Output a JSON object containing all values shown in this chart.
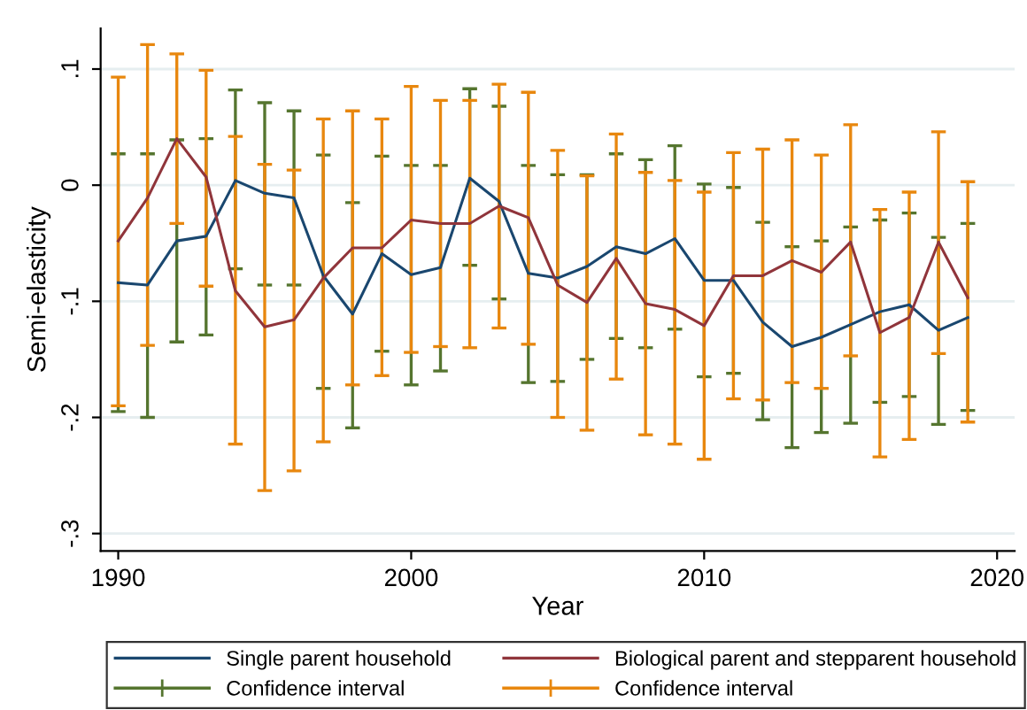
{
  "chart_data": {
    "type": "line",
    "xlabel": "Year",
    "ylabel": "Semi-elasticity",
    "x": [
      1990,
      1991,
      1992,
      1993,
      1994,
      1995,
      1996,
      1997,
      1998,
      1999,
      2000,
      2001,
      2002,
      2003,
      2004,
      2005,
      2006,
      2007,
      2008,
      2009,
      2010,
      2011,
      2012,
      2013,
      2014,
      2015,
      2016,
      2017,
      2018,
      2019
    ],
    "series": [
      {
        "name": "Single parent household",
        "color": "#1a476f",
        "values": [
          -0.084,
          -0.086,
          -0.048,
          -0.044,
          0.004,
          -0.007,
          -0.011,
          -0.078,
          -0.111,
          -0.059,
          -0.077,
          -0.071,
          0.006,
          -0.014,
          -0.076,
          -0.08,
          -0.07,
          -0.053,
          -0.059,
          -0.046,
          -0.082,
          -0.082,
          -0.118,
          -0.139,
          -0.131,
          -0.12,
          -0.109,
          -0.103,
          -0.125,
          -0.114
        ],
        "errors": [
          [
            -0.195,
            0.027
          ],
          [
            -0.2,
            0.027
          ],
          [
            -0.135,
            0.039
          ],
          [
            -0.129,
            0.04
          ],
          [
            -0.072,
            0.082
          ],
          [
            -0.086,
            0.071
          ],
          [
            -0.086,
            0.064
          ],
          [
            -0.175,
            0.026
          ],
          [
            -0.209,
            -0.015
          ],
          [
            -0.143,
            0.025
          ],
          [
            -0.172,
            0.017
          ],
          [
            -0.16,
            0.017
          ],
          [
            -0.069,
            0.083
          ],
          [
            -0.098,
            0.068
          ],
          [
            -0.17,
            0.017
          ],
          [
            -0.169,
            0.009
          ],
          [
            -0.15,
            0.009
          ],
          [
            -0.132,
            0.027
          ],
          [
            -0.14,
            0.022
          ],
          [
            -0.124,
            0.034
          ],
          [
            -0.165,
            0.001
          ],
          [
            -0.162,
            -0.002
          ],
          [
            -0.202,
            -0.032
          ],
          [
            -0.226,
            -0.053
          ],
          [
            -0.213,
            -0.048
          ],
          [
            -0.205,
            -0.036
          ],
          [
            -0.187,
            -0.03
          ],
          [
            -0.182,
            -0.024
          ],
          [
            -0.206,
            -0.045
          ],
          [
            -0.194,
            -0.033
          ]
        ]
      },
      {
        "name": "Confidence interval",
        "color": "#55752f",
        "values": [
          null,
          null,
          null,
          null,
          null,
          null,
          null,
          null,
          null,
          null,
          null,
          null,
          null,
          null,
          null,
          null,
          null,
          null,
          null,
          null,
          null,
          null,
          null,
          null,
          null,
          null,
          null,
          null,
          null,
          null
        ]
      },
      {
        "name": "Biological parent and stepparent household",
        "color": "#90353b",
        "values": [
          -0.048,
          -0.011,
          0.04,
          0.007,
          -0.091,
          -0.122,
          -0.116,
          -0.08,
          -0.054,
          -0.054,
          -0.03,
          -0.033,
          -0.033,
          -0.018,
          -0.028,
          -0.086,
          -0.101,
          -0.063,
          -0.102,
          -0.107,
          -0.121,
          -0.078,
          -0.078,
          -0.065,
          -0.075,
          -0.049,
          -0.127,
          -0.114,
          -0.049,
          -0.097
        ],
        "errors": [
          [
            -0.19,
            0.093
          ],
          [
            -0.138,
            0.121
          ],
          [
            -0.033,
            0.113
          ],
          [
            -0.087,
            0.099
          ],
          [
            -0.223,
            0.042
          ],
          [
            -0.263,
            0.018
          ],
          [
            -0.246,
            0.013
          ],
          [
            -0.221,
            0.057
          ],
          [
            -0.172,
            0.064
          ],
          [
            -0.164,
            0.057
          ],
          [
            -0.144,
            0.085
          ],
          [
            -0.139,
            0.073
          ],
          [
            -0.14,
            0.073
          ],
          [
            -0.123,
            0.087
          ],
          [
            -0.137,
            0.08
          ],
          [
            -0.2,
            0.03
          ],
          [
            -0.211,
            0.008
          ],
          [
            -0.167,
            0.044
          ],
          [
            -0.215,
            0.011
          ],
          [
            -0.223,
            0.004
          ],
          [
            -0.236,
            -0.006
          ],
          [
            -0.184,
            0.028
          ],
          [
            -0.185,
            0.031
          ],
          [
            -0.17,
            0.039
          ],
          [
            -0.175,
            0.026
          ],
          [
            -0.147,
            0.052
          ],
          [
            -0.234,
            -0.021
          ],
          [
            -0.219,
            -0.006
          ],
          [
            -0.145,
            0.046
          ],
          [
            -0.204,
            0.003
          ]
        ]
      },
      {
        "name": "Confidence interval",
        "color": "#e8870e",
        "values": [
          null,
          null,
          null,
          null,
          null,
          null,
          null,
          null,
          null,
          null,
          null,
          null,
          null,
          null,
          null,
          null,
          null,
          null,
          null,
          null,
          null,
          null,
          null,
          null,
          null,
          null,
          null,
          null,
          null,
          null
        ]
      }
    ],
    "xlim": [
      1989.4,
      2020.6
    ],
    "xticks": [
      1990,
      2000,
      2010,
      2020
    ],
    "ylim": [
      -0.315,
      0.135
    ],
    "yticks": [
      {
        "value": 0.1,
        "label": ".1"
      },
      0,
      {
        "value": -0.1,
        "label": "-.1"
      },
      {
        "value": -0.2,
        "label": "-.2"
      },
      {
        "value": -0.3,
        "label": "-.3"
      }
    ],
    "grid": "y",
    "legend": "bottom",
    "marker": "none",
    "line_style": "solid"
  }
}
